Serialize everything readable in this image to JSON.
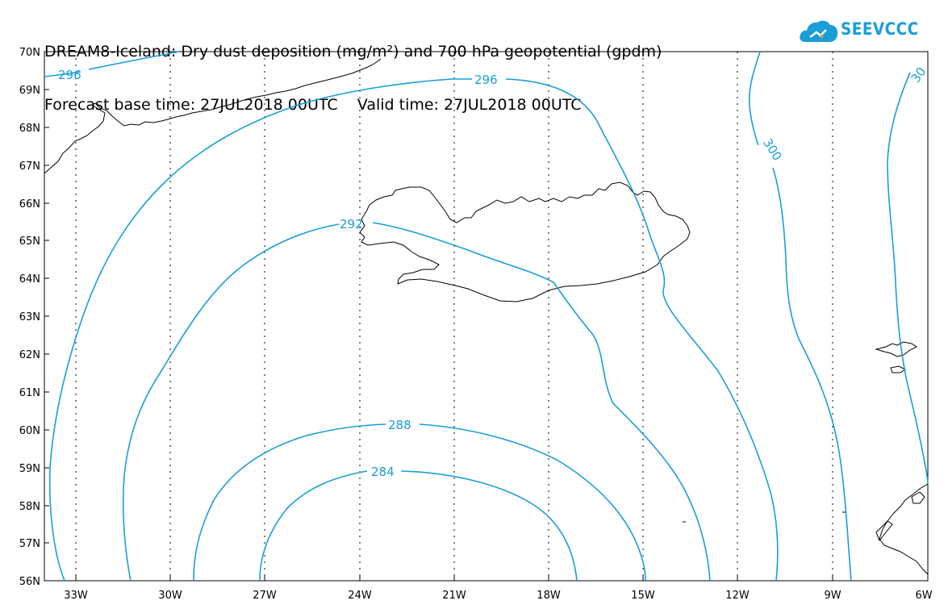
{
  "header": {
    "title_line1": "DREAM8-Iceland: Dry dust deposition (mg/m²) and 700 hPa geopotential (gpdm)",
    "title_line2": "Forecast base time: 27JUL2018 00UTC    Valid time: 27JUL2018 00UTC"
  },
  "logo": {
    "text": "SEEVCCC",
    "icon": "cloud-icon",
    "color": "#1a9ed9"
  },
  "map": {
    "lat_labels": [
      "70N",
      "69N",
      "68N",
      "67N",
      "66N",
      "65N",
      "64N",
      "63N",
      "62N",
      "61N",
      "60N",
      "59N",
      "58N",
      "57N",
      "56N"
    ],
    "lon_labels": [
      "33W",
      "30W",
      "27W",
      "24W",
      "21W",
      "18W",
      "15W",
      "12W",
      "9W",
      "6W"
    ],
    "contour_color": "#1a9ed9",
    "coast_color": "#000000",
    "contour_labels": {
      "c296_left": "296",
      "c296_top": "296",
      "c300": "300",
      "c30_partial": "30",
      "c292": "292",
      "c288": "288",
      "c284": "284"
    }
  }
}
